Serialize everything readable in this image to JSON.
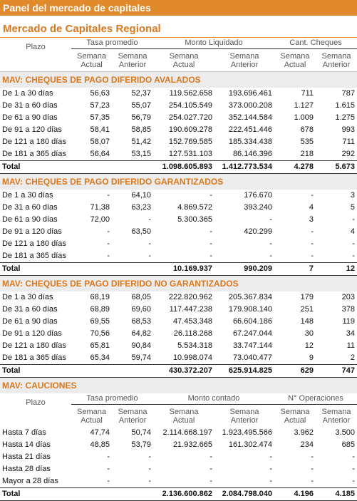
{
  "header": {
    "title": "Panel del mercado de capitales",
    "subtitle": "Mercado de Capitales Regional"
  },
  "columns": {
    "plazo": "Plazo",
    "groups": [
      "Tasa promedio",
      "Monto Liquidado",
      "Cant. Cheques"
    ],
    "sub": [
      "Semana Actual",
      "Semana Anterior",
      "Semana Actual",
      "Semana Anterior",
      "Semana Actual",
      "Semana Anterior"
    ]
  },
  "sections": [
    {
      "title": "MAV: CHEQUES DE PAGO DIFERIDO AVALADOS",
      "rows": [
        [
          "De 1 a 30 días",
          "56,63",
          "52,37",
          "119.562.658",
          "193.696.461",
          "711",
          "787"
        ],
        [
          "De 31 a 60 días",
          "57,23",
          "55,07",
          "254.105.549",
          "373.000.208",
          "1.127",
          "1.615"
        ],
        [
          "De 61 a 90 días",
          "57,35",
          "56,79",
          "254.027.720",
          "352.144.584",
          "1.009",
          "1.275"
        ],
        [
          "De 91 a 120 días",
          "58,41",
          "58,85",
          "190.609.278",
          "222.451.446",
          "678",
          "993"
        ],
        [
          "De 121 a 180 días",
          "58,07",
          "51,42",
          "152.769.585",
          "185.334.438",
          "535",
          "711"
        ],
        [
          "De 181 a 365 días",
          "56,64",
          "53,15",
          "127.531.103",
          "86.146.396",
          "218",
          "292"
        ]
      ],
      "total": [
        "Total",
        "1.098.605.893",
        "1.412.773.534",
        "4.278",
        "5.673"
      ]
    },
    {
      "title": "MAV: CHEQUES DE PAGO DIFERIDO GARANTIZADOS",
      "rows": [
        [
          "De 1 a 30 días",
          "-",
          "64,10",
          "-",
          "176.670",
          "-",
          "3"
        ],
        [
          "De 31 a 60 días",
          "71,38",
          "63,23",
          "4.869.572",
          "393.240",
          "4",
          "5"
        ],
        [
          "De 61 a 90 días",
          "72,00",
          "-",
          "5.300.365",
          "-",
          "3",
          "-"
        ],
        [
          "De 91 a 120 días",
          "-",
          "63,50",
          "-",
          "420.299",
          "-",
          "4"
        ],
        [
          "De 121 a 180 días",
          "-",
          "-",
          "-",
          "-",
          "-",
          "-"
        ],
        [
          "De 181 a 365 días",
          "-",
          "-",
          "-",
          "-",
          "-",
          "-"
        ]
      ],
      "total": [
        "Total",
        "10.169.937",
        "990.209",
        "7",
        "12"
      ]
    },
    {
      "title": "MAV: CHEQUES DE PAGO DIFERIDO NO GARANTIZADOS",
      "rows": [
        [
          "De 1 a 30 días",
          "68,19",
          "68,05",
          "222.820.962",
          "205.367.834",
          "179",
          "203"
        ],
        [
          "De 31 a 60 días",
          "68,89",
          "69,60",
          "117.447.238",
          "179.908.140",
          "251",
          "378"
        ],
        [
          "De 61 a 90 días",
          "69,55",
          "68,53",
          "47.453.348",
          "66.604.186",
          "148",
          "119"
        ],
        [
          "De 91 a 120 días",
          "70,56",
          "64,82",
          "26.118.268",
          "67.247.044",
          "30",
          "34"
        ],
        [
          "De 121 a 180 días",
          "65,81",
          "90,84",
          "5.534.318",
          "33.747.144",
          "12",
          "11"
        ],
        [
          "De 181 a 365 días",
          "65,34",
          "59,74",
          "10.998.074",
          "73.040.477",
          "9",
          "2"
        ]
      ],
      "total": [
        "Total",
        "430.372.207",
        "625.914.825",
        "629",
        "747"
      ]
    },
    {
      "title": "MAV: CAUCIONES",
      "columns": {
        "plazo": "Plazo",
        "groups": [
          "Tasa promedio",
          "Monto contado",
          "N° Operaciones"
        ],
        "sub": [
          "Semana Actual",
          "Semana Anterior",
          "Semana Actual",
          "Semana Anterior",
          "Semana Actual",
          "Semana Anterior"
        ]
      },
      "rows": [
        [
          "Hasta 7 días",
          "47,74",
          "50,74",
          "2.114.668.197",
          "1.923.495.566",
          "3.962",
          "3.500"
        ],
        [
          "Hasta 14 días",
          "48,85",
          "53,79",
          "21.932.665",
          "161.302.474",
          "234",
          "685"
        ],
        [
          "Hasta 21 días",
          "-",
          "-",
          "-",
          "-",
          "-",
          "-"
        ],
        [
          "Hasta 28 días",
          "-",
          "-",
          "-",
          "-",
          "-",
          "-"
        ],
        [
          "Mayor a 28 días",
          "-",
          "-",
          "-",
          "-",
          "-",
          "-"
        ]
      ],
      "total": [
        "Total",
        "2.136.600.862",
        "2.084.798.040",
        "4.196",
        "4.185"
      ]
    }
  ]
}
